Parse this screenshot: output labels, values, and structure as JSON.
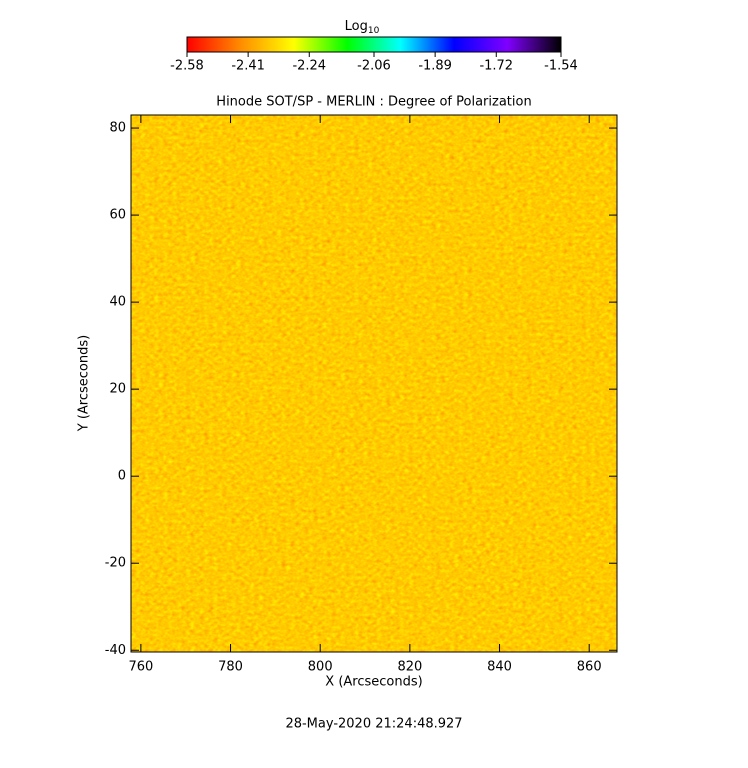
{
  "chart_data": {
    "type": "heatmap",
    "title": "Hinode SOT/SP - MERLIN : Degree of Polarization",
    "x_label": "X (Arcseconds)",
    "y_label": "Y (Arcseconds)",
    "footer": "28-May-2020 21:24:48.927",
    "xlim": [
      757.8,
      866.2
    ],
    "xticks": [
      760,
      780,
      800,
      820,
      840,
      860
    ],
    "ylim": [
      -40.4,
      83
    ],
    "yticks": [
      -40,
      -20,
      0,
      20,
      40,
      60,
      80
    ],
    "colorbar_label": "Log",
    "colorbar_label_sub": "10",
    "colorbar_lim": [
      -2.58,
      -1.54
    ],
    "colorbar_ticks": [
      -2.58,
      -2.41,
      -2.24,
      -2.06,
      -1.89,
      -1.72,
      -1.54
    ],
    "colormap": [
      "#ff0000",
      "#ff8c00",
      "#ffff00",
      "#00ff00",
      "#00ffff",
      "#0000ff",
      "#8000ff",
      "#000000"
    ]
  }
}
